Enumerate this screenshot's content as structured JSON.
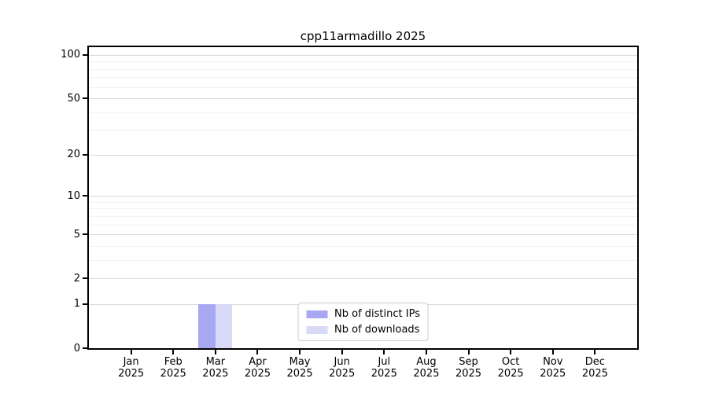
{
  "chart_data": {
    "type": "bar",
    "title": "cpp11armadillo 2025",
    "categories": [
      "Jan 2025",
      "Feb 2025",
      "Mar 2025",
      "Apr 2025",
      "May 2025",
      "Jun 2025",
      "Jul 2025",
      "Aug 2025",
      "Sep 2025",
      "Oct 2025",
      "Nov 2025",
      "Dec 2025"
    ],
    "series": [
      {
        "name": "Nb of distinct IPs",
        "color": "#a8a8f2",
        "values": [
          0,
          0,
          1,
          0,
          0,
          0,
          0,
          0,
          0,
          0,
          0,
          0
        ]
      },
      {
        "name": "Nb of downloads",
        "color": "#d9d9f8",
        "values": [
          0,
          0,
          1,
          0,
          0,
          0,
          0,
          0,
          0,
          0,
          0,
          0
        ]
      }
    ],
    "yscale": "log1p",
    "ylim": [
      0,
      113
    ],
    "ytick_major": [
      0,
      1,
      2,
      5,
      10,
      20,
      50,
      100
    ],
    "ytick_minor": [
      3,
      4,
      6,
      7,
      8,
      9,
      30,
      40,
      60,
      70,
      80,
      90
    ],
    "xlabel": "",
    "ylabel": "",
    "grid": "on",
    "legend_position": "lower center",
    "colors": {
      "axis": "#000000",
      "grid_major": "#d9d9d9",
      "grid_minor": "#f2f2f2",
      "background": "#ffffff"
    }
  }
}
